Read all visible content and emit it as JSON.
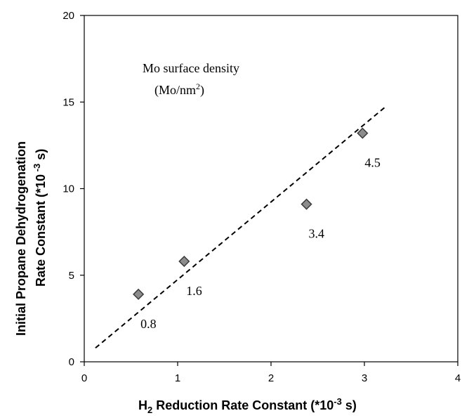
{
  "chart_data": {
    "type": "scatter",
    "xlabel": {
      "prefix": "H",
      "subscript": "2",
      "middle": " Reduction Rate Constant (*10",
      "superscript": "-3",
      "suffix": " s)"
    },
    "ylabel": {
      "line1": "Initial Propane Dehydrogenation",
      "line2_prefix": "Rate Constant (*10",
      "line2_superscript": " -3",
      "line2_suffix": " s)"
    },
    "annotation": {
      "line1": "Mo surface density",
      "line2_prefix": "(Mo/nm",
      "line2_superscript": "2",
      "line2_suffix": ")"
    },
    "xlim": [
      0,
      4
    ],
    "ylim": [
      0,
      20
    ],
    "x_ticks": [
      "0",
      "1",
      "2",
      "3",
      "4"
    ],
    "y_ticks": [
      "0",
      "5",
      "10",
      "15",
      "20"
    ],
    "grid": false,
    "points": [
      {
        "x": 0.58,
        "y": 3.9,
        "label": "0.8"
      },
      {
        "x": 1.07,
        "y": 5.8,
        "label": "1.6"
      },
      {
        "x": 2.38,
        "y": 9.1,
        "label": "3.4"
      },
      {
        "x": 2.98,
        "y": 13.2,
        "label": "4.5"
      }
    ],
    "trendline": {
      "style": "dashed",
      "x": [
        0.12,
        3.22
      ],
      "y": [
        0.8,
        14.7
      ]
    },
    "marker": {
      "shape": "diamond",
      "fill": "#8c8c8c",
      "stroke": "#3a3a3a"
    }
  }
}
